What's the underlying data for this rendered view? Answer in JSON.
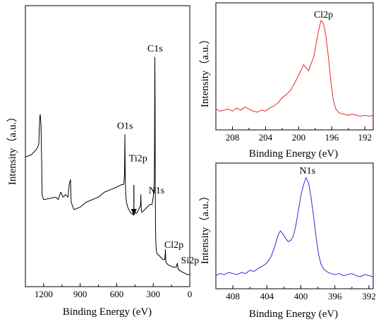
{
  "chart_data": [
    {
      "id": "survey",
      "type": "line",
      "xlabel": "Binding Energy (eV)",
      "ylabel": "Intensity（a.u.）",
      "xlim": [
        1350,
        0
      ],
      "x_reversed": true,
      "ylim": [
        0,
        1
      ],
      "xticks": [
        1200,
        900,
        600,
        300,
        0
      ],
      "line_color": "#000000",
      "annotations": [
        {
          "text": "C1s",
          "x": 285,
          "y": 0.89
        },
        {
          "text": "O1s",
          "x": 532,
          "y": 0.58
        },
        {
          "text": "Ti2p",
          "x": 459,
          "y": 0.36
        },
        {
          "text": "N1s",
          "x": 400,
          "y": 0.3
        },
        {
          "text": "Cl2p",
          "x": 200,
          "y": 0.11
        },
        {
          "text": "Si2p",
          "x": 102,
          "y": 0.06
        }
      ],
      "arrow": {
        "label": "Ti2p",
        "x": 459
      },
      "series": [
        {
          "x": [
            1350,
            1300,
            1260,
            1240,
            1236,
            1232,
            1228,
            1222,
            1216,
            1213,
            1208,
            1200,
            1150,
            1100,
            1080,
            1060,
            1040,
            1020,
            1000,
            990,
            980,
            978,
            974,
            960,
            950,
            900,
            850,
            800,
            750,
            700,
            650,
            600,
            560,
            545,
            540,
            536,
            533,
            530,
            527,
            524,
            520,
            510,
            490,
            470,
            462,
            459,
            456,
            450,
            440,
            430,
            420,
            410,
            404,
            402,
            400,
            398,
            396,
            390,
            370,
            350,
            330,
            310,
            300,
            295,
            291,
            289,
            287,
            285,
            284,
            283,
            281,
            278,
            275,
            272,
            270,
            260,
            250,
            240,
            230,
            220,
            210,
            205,
            202,
            200,
            198,
            196,
            190,
            180,
            160,
            140,
            120,
            110,
            106,
            102,
            99,
            96,
            90,
            80,
            60,
            40,
            20,
            10,
            0
          ],
          "y": [
            0.49,
            0.5,
            0.52,
            0.54,
            0.6,
            0.65,
            0.66,
            0.62,
            0.46,
            0.34,
            0.33,
            0.32,
            0.325,
            0.33,
            0.32,
            0.35,
            0.33,
            0.34,
            0.33,
            0.38,
            0.4,
            0.37,
            0.31,
            0.29,
            0.28,
            0.29,
            0.31,
            0.32,
            0.33,
            0.35,
            0.36,
            0.37,
            0.38,
            0.38,
            0.39,
            0.42,
            0.58,
            0.41,
            0.36,
            0.33,
            0.31,
            0.29,
            0.27,
            0.26,
            0.265,
            0.27,
            0.265,
            0.27,
            0.265,
            0.27,
            0.28,
            0.29,
            0.3,
            0.34,
            0.31,
            0.28,
            0.27,
            0.27,
            0.28,
            0.29,
            0.3,
            0.3,
            0.33,
            0.36,
            0.4,
            0.55,
            0.89,
            0.72,
            0.5,
            0.35,
            0.2,
            0.14,
            0.12,
            0.11,
            0.105,
            0.1,
            0.095,
            0.09,
            0.085,
            0.08,
            0.08,
            0.08,
            0.1,
            0.12,
            0.09,
            0.07,
            0.065,
            0.06,
            0.055,
            0.05,
            0.05,
            0.05,
            0.06,
            0.065,
            0.055,
            0.04,
            0.04,
            0.035,
            0.03,
            0.025,
            0.02,
            0.02,
            0.02
          ]
        }
      ]
    },
    {
      "id": "cl2p",
      "type": "line",
      "xlabel": "Binding Energy (eV)",
      "ylabel": "Intensity（a.u.）",
      "xlim": [
        210,
        191
      ],
      "x_reversed": true,
      "ylim": [
        0,
        1
      ],
      "xticks": [
        208,
        204,
        200,
        196,
        192
      ],
      "line_color": "#e8262b",
      "annotations": [
        {
          "text": "Cl2p",
          "x": 197,
          "y": 0.98
        }
      ],
      "series": [
        {
          "x": [
            210,
            209.5,
            209,
            208.5,
            208,
            207.5,
            207,
            206.5,
            206,
            205.5,
            205,
            204.5,
            204,
            203.5,
            203,
            202.5,
            202,
            201.5,
            201,
            200.5,
            200,
            199.7,
            199.4,
            199.1,
            198.8,
            198.5,
            198.2,
            197.9,
            197.6,
            197.3,
            197.0,
            196.7,
            196.4,
            196.1,
            195.8,
            195.5,
            195.2,
            195,
            194.5,
            194,
            193.5,
            193,
            192.5,
            192,
            191.5,
            191
          ],
          "y": [
            0.12,
            0.1,
            0.11,
            0.12,
            0.1,
            0.13,
            0.11,
            0.14,
            0.12,
            0.1,
            0.09,
            0.11,
            0.1,
            0.13,
            0.15,
            0.18,
            0.23,
            0.26,
            0.3,
            0.37,
            0.45,
            0.5,
            0.55,
            0.52,
            0.49,
            0.56,
            0.62,
            0.75,
            0.88,
            0.98,
            0.95,
            0.82,
            0.62,
            0.38,
            0.2,
            0.12,
            0.09,
            0.08,
            0.07,
            0.06,
            0.07,
            0.06,
            0.05,
            0.06,
            0.05,
            0.06
          ]
        }
      ]
    },
    {
      "id": "n1s",
      "type": "line",
      "xlabel": "Binding Energy (eV)",
      "ylabel": "Intensity（a.u.）",
      "xlim": [
        410,
        391.5
      ],
      "x_reversed": true,
      "ylim": [
        0,
        1
      ],
      "xticks": [
        408,
        404,
        400,
        396,
        392
      ],
      "line_color": "#2b2bd9",
      "annotations": [
        {
          "text": "N1s",
          "x": 399.4,
          "y": 0.98
        }
      ],
      "series": [
        {
          "x": [
            410,
            409.5,
            409,
            408.5,
            408,
            407.5,
            407,
            406.5,
            406,
            405.5,
            405,
            404.5,
            404,
            403.5,
            403,
            402.7,
            402.4,
            402.1,
            401.8,
            401.5,
            401.2,
            400.9,
            400.6,
            400.3,
            400.0,
            399.7,
            399.4,
            399.1,
            398.8,
            398.5,
            398.2,
            397.9,
            397.6,
            397.3,
            397,
            396.5,
            396,
            395.5,
            395,
            394.5,
            394,
            393.5,
            393,
            392.5,
            392,
            391.5
          ],
          "y": [
            0.05,
            0.07,
            0.06,
            0.08,
            0.07,
            0.06,
            0.08,
            0.07,
            0.1,
            0.09,
            0.12,
            0.14,
            0.17,
            0.23,
            0.34,
            0.43,
            0.47,
            0.44,
            0.4,
            0.37,
            0.38,
            0.42,
            0.52,
            0.66,
            0.8,
            0.9,
            0.97,
            0.92,
            0.78,
            0.6,
            0.4,
            0.24,
            0.15,
            0.11,
            0.09,
            0.07,
            0.06,
            0.07,
            0.05,
            0.06,
            0.07,
            0.05,
            0.04,
            0.06,
            0.05,
            0.04
          ]
        }
      ]
    }
  ]
}
